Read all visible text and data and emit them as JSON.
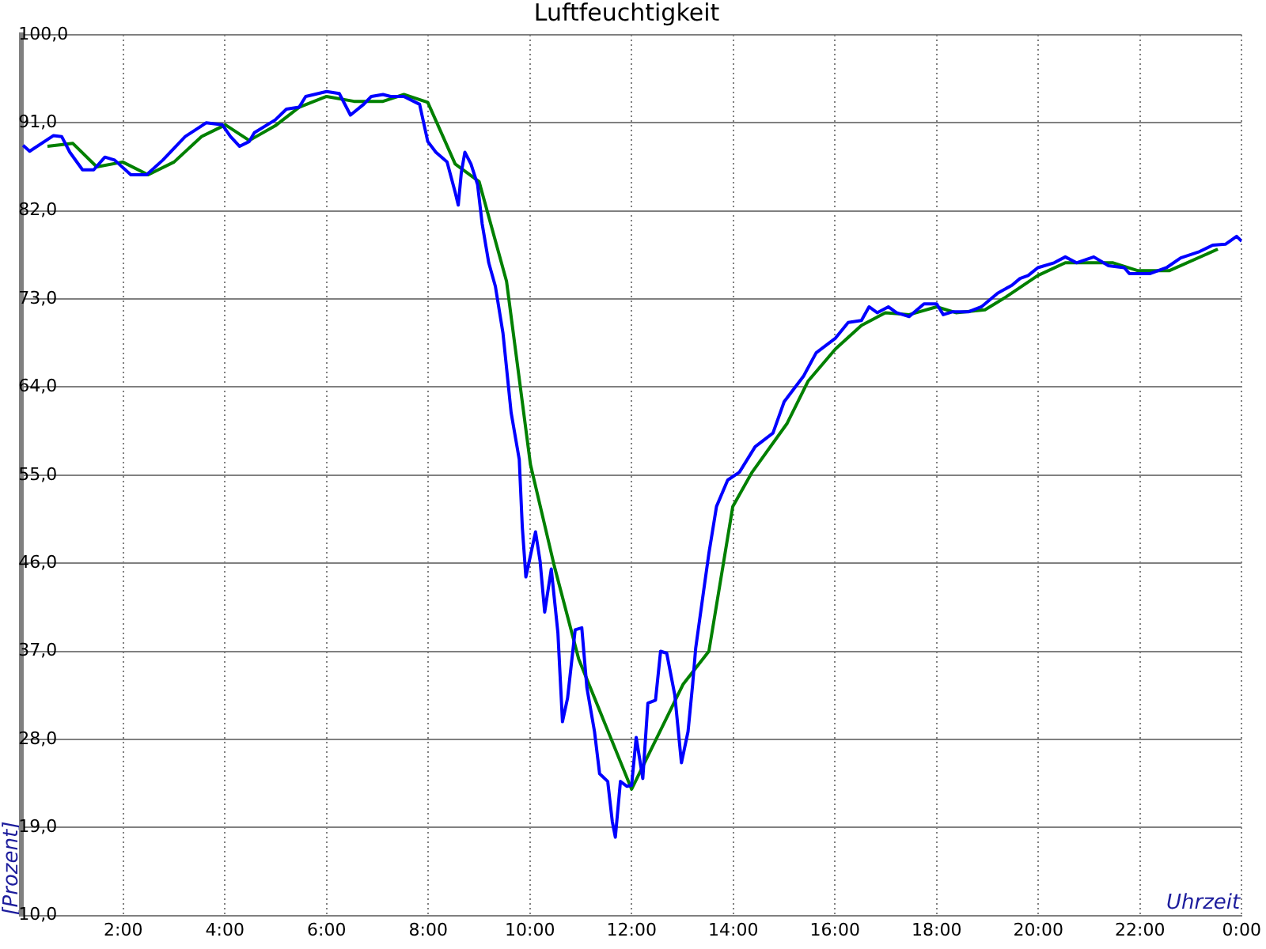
{
  "chart_data": {
    "type": "line",
    "title": "Luftfeuchtigkeit",
    "xlabel": "Uhrzeit",
    "ylabel": "[Prozent]",
    "xlim": [
      0,
      24
    ],
    "xticks": [
      {
        "value": 0,
        "label": null
      },
      {
        "value": 2,
        "label": "2:00"
      },
      {
        "value": 4,
        "label": "4:00"
      },
      {
        "value": 6,
        "label": "6:00"
      },
      {
        "value": 8,
        "label": "8:00"
      },
      {
        "value": 10,
        "label": "10:00"
      },
      {
        "value": 12,
        "label": "12:00"
      },
      {
        "value": 14,
        "label": "14:00"
      },
      {
        "value": 16,
        "label": "16:00"
      },
      {
        "value": 18,
        "label": "18:00"
      },
      {
        "value": 20,
        "label": "20:00"
      },
      {
        "value": 22,
        "label": "22:00"
      },
      {
        "value": 24,
        "label": "0:00"
      }
    ],
    "ylim": [
      10,
      100
    ],
    "yticks": [
      {
        "value": 10,
        "label": "10,0"
      },
      {
        "value": 19,
        "label": "19,0"
      },
      {
        "value": 28,
        "label": "28,0"
      },
      {
        "value": 37,
        "label": "37,0"
      },
      {
        "value": 46,
        "label": "46,0"
      },
      {
        "value": 55,
        "label": "55,0"
      },
      {
        "value": 64,
        "label": "64,0"
      },
      {
        "value": 73,
        "label": "73,0"
      },
      {
        "value": 82,
        "label": "82,0"
      },
      {
        "value": 91,
        "label": "91,0"
      },
      {
        "value": 100,
        "label": "100,0"
      }
    ],
    "grid": true,
    "legend": false,
    "marker": "none",
    "line_style": "solid",
    "series": [
      {
        "color": "#0000ff",
        "x": [
          0.03,
          0.16,
          0.63,
          0.79,
          0.95,
          1.2,
          1.42,
          1.64,
          1.83,
          2.15,
          2.46,
          2.78,
          3.22,
          3.63,
          3.95,
          4.11,
          4.29,
          4.48,
          4.58,
          4.99,
          5.21,
          5.46,
          5.59,
          6,
          6.25,
          6.47,
          6.73,
          6.88,
          7.11,
          7.26,
          7.52,
          7.83,
          7.99,
          8.15,
          8.37,
          8.53,
          8.59,
          8.65,
          8.72,
          8.84,
          8.97,
          9.06,
          9.19,
          9.32,
          9.47,
          9.63,
          9.79,
          9.85,
          9.92,
          10.11,
          10.2,
          10.29,
          10.42,
          10.55,
          10.64,
          10.74,
          10.89,
          11.02,
          11.12,
          11.27,
          11.37,
          11.53,
          11.62,
          11.68,
          11.78,
          11.91,
          12,
          12.09,
          12.22,
          12.32,
          12.47,
          12.57,
          12.69,
          12.85,
          12.98,
          13.11,
          13.2,
          13.26,
          13.42,
          13.52,
          13.67,
          13.89,
          14.12,
          14.43,
          14.78,
          15,
          15.38,
          15.63,
          16.01,
          16.26,
          16.52,
          16.67,
          16.83,
          17.05,
          17.21,
          17.46,
          17.75,
          18,
          18.13,
          18.32,
          18.63,
          18.88,
          19.2,
          19.48,
          19.64,
          19.8,
          19.99,
          20.31,
          20.53,
          20.75,
          21.09,
          21.38,
          21.69,
          21.79,
          22.2,
          22.52,
          22.8,
          23.15,
          23.43,
          23.68,
          23.9,
          24
        ],
        "values": [
          88.7,
          88.1,
          89.7,
          89.6,
          88,
          86.2,
          86.2,
          87.5,
          87.2,
          85.7,
          85.7,
          87.2,
          89.6,
          91,
          90.8,
          89.6,
          88.6,
          89.1,
          90,
          91.3,
          92.4,
          92.6,
          93.7,
          94.2,
          94,
          91.8,
          92.9,
          93.7,
          93.9,
          93.7,
          93.7,
          92.9,
          89.1,
          88,
          87,
          83.9,
          82.6,
          85.9,
          88,
          86.8,
          84.7,
          80.7,
          76.7,
          74.3,
          69.5,
          61.4,
          56.6,
          49.7,
          44.6,
          49.2,
          46.2,
          41,
          45.4,
          38.9,
          29.8,
          32.2,
          39.2,
          39.4,
          33.3,
          28.8,
          24.5,
          23.7,
          19.6,
          18,
          23.7,
          23.2,
          23.3,
          28.2,
          24,
          31.7,
          32,
          37,
          36.8,
          32.5,
          25.6,
          28.8,
          33.6,
          37.3,
          43.3,
          47,
          51.8,
          54.5,
          55.3,
          57.9,
          59.3,
          62.5,
          65.1,
          67.5,
          69,
          70.6,
          70.8,
          72.2,
          71.6,
          72.2,
          71.6,
          71.2,
          72.5,
          72.5,
          71.4,
          71.7,
          71.7,
          72.2,
          73.6,
          74.4,
          75.1,
          75.4,
          76.2,
          76.7,
          77.3,
          76.7,
          77.3,
          76.4,
          76.2,
          75.6,
          75.6,
          76.2,
          77.2,
          77.8,
          78.5,
          78.6,
          79.4,
          78.9
        ]
      },
      {
        "color": "#008000",
        "x": [
          0.51,
          1.01,
          1.48,
          1.99,
          2.49,
          3,
          3.54,
          4.01,
          4.48,
          4.99,
          5.46,
          6,
          6.54,
          7.11,
          7.52,
          7.99,
          8.53,
          9,
          9.54,
          10.01,
          10.48,
          10.96,
          12,
          13.01,
          13.52,
          13.99,
          14.37,
          15.06,
          15.47,
          16.01,
          16.52,
          16.99,
          17.46,
          18,
          18.38,
          18.95,
          19.36,
          19.99,
          20.53,
          21.47,
          21.95,
          22.58,
          23.53
        ],
        "values": [
          88.6,
          88.9,
          86.5,
          87,
          85.7,
          87,
          89.6,
          90.8,
          89.2,
          90.7,
          92.6,
          93.7,
          93.2,
          93.2,
          93.9,
          93.1,
          86.8,
          85,
          74.8,
          56.1,
          45.7,
          36.2,
          22.9,
          33.6,
          37,
          51.8,
          55.3,
          60.3,
          64.6,
          67.9,
          70.3,
          71.6,
          71.4,
          72.2,
          71.6,
          71.9,
          73.2,
          75.4,
          76.7,
          76.7,
          75.9,
          75.9,
          78.1
        ]
      }
    ]
  }
}
